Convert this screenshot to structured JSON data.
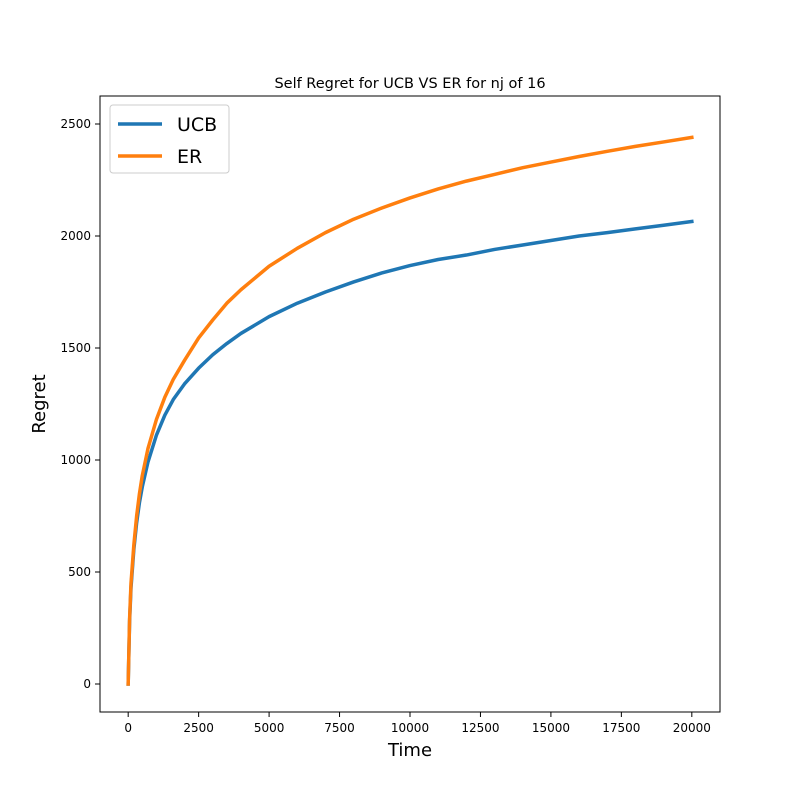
{
  "chart_data": {
    "type": "line",
    "title": "Self Regret for UCB VS ER for nj of 16",
    "xlabel": "Time",
    "ylabel": "Regret",
    "xlim": [
      -1000,
      21000
    ],
    "ylim": [
      -125,
      2625
    ],
    "xticks": [
      0,
      2500,
      5000,
      7500,
      10000,
      12500,
      15000,
      17500,
      20000
    ],
    "yticks": [
      0,
      500,
      1000,
      1500,
      2000,
      2500
    ],
    "grid": false,
    "legend_position": "upper-left",
    "series": [
      {
        "name": "UCB",
        "color": "#1f77b4",
        "x": [
          0,
          50,
          100,
          200,
          300,
          400,
          500,
          700,
          1000,
          1300,
          1600,
          2000,
          2500,
          3000,
          3500,
          4000,
          5000,
          6000,
          7000,
          8000,
          9000,
          10000,
          11000,
          12000,
          13000,
          14000,
          15000,
          16000,
          17000,
          18000,
          19000,
          20000
        ],
        "y": [
          0,
          280,
          430,
          600,
          720,
          810,
          880,
          990,
          1110,
          1200,
          1270,
          1340,
          1410,
          1470,
          1520,
          1565,
          1640,
          1700,
          1750,
          1795,
          1835,
          1868,
          1895,
          1915,
          1940,
          1960,
          1980,
          2000,
          2015,
          2032,
          2048,
          2065
        ]
      },
      {
        "name": "ER",
        "color": "#ff7f0e",
        "x": [
          0,
          50,
          100,
          200,
          300,
          400,
          500,
          700,
          1000,
          1300,
          1600,
          2000,
          2500,
          3000,
          3500,
          4000,
          5000,
          6000,
          7000,
          8000,
          9000,
          10000,
          11000,
          12000,
          13000,
          14000,
          15000,
          16000,
          17000,
          18000,
          19000,
          20000
        ],
        "y": [
          0,
          290,
          450,
          620,
          750,
          850,
          930,
          1050,
          1180,
          1280,
          1360,
          1445,
          1545,
          1625,
          1700,
          1760,
          1865,
          1945,
          2015,
          2075,
          2125,
          2170,
          2210,
          2245,
          2275,
          2305,
          2330,
          2355,
          2378,
          2400,
          2420,
          2440
        ]
      }
    ]
  }
}
